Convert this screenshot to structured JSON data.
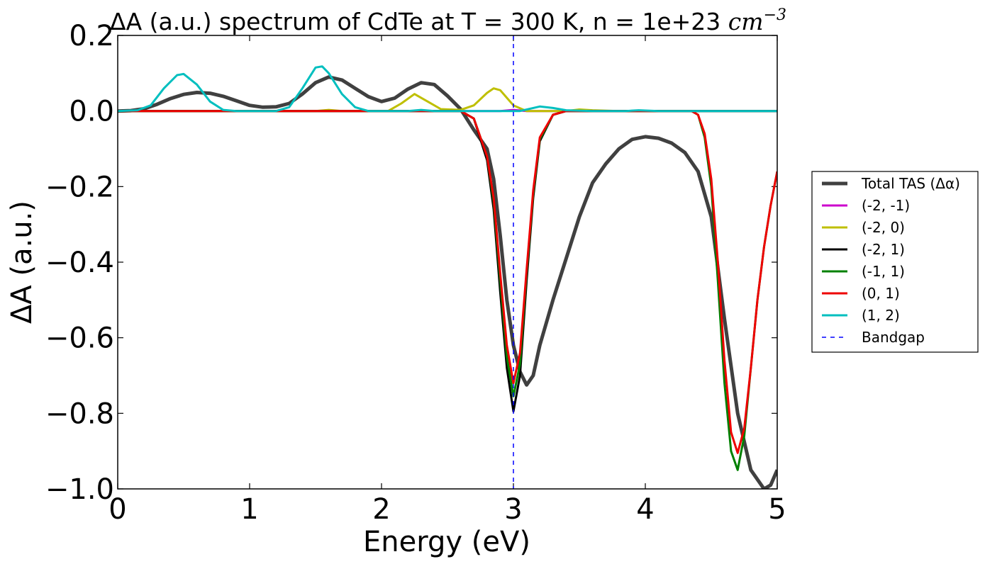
{
  "chart_data": {
    "type": "line",
    "title_main": "ΔA (a.u.) spectrum of CdTe at T = 300 K, n = 1e+23 ",
    "title_unit": "cm",
    "title_exp": "−3",
    "xlabel": "Energy (eV)",
    "ylabel": "ΔA (a.u.)",
    "xlim": [
      0,
      5
    ],
    "ylim": [
      -1.0,
      0.2
    ],
    "xticks": [
      0,
      1,
      2,
      3,
      4,
      5
    ],
    "xtick_labels": [
      "0",
      "1",
      "2",
      "3",
      "4",
      "5"
    ],
    "yticks": [
      -1.0,
      -0.8,
      -0.6,
      -0.4,
      -0.2,
      0.0,
      0.2
    ],
    "ytick_labels": [
      "−1.0",
      "−0.8",
      "−0.6",
      "−0.4",
      "−0.2",
      "0.0",
      "0.2"
    ],
    "grid": false,
    "legend_position": "outside-right",
    "bandgap_x": 3.0,
    "series": [
      {
        "name": "Total TAS (Δα)",
        "color": "#404040",
        "width": 5,
        "points": [
          [
            0,
            0
          ],
          [
            0.1,
            0.001
          ],
          [
            0.2,
            0.006
          ],
          [
            0.3,
            0.018
          ],
          [
            0.4,
            0.033
          ],
          [
            0.5,
            0.044
          ],
          [
            0.6,
            0.049
          ],
          [
            0.7,
            0.047
          ],
          [
            0.8,
            0.039
          ],
          [
            0.9,
            0.027
          ],
          [
            1.0,
            0.015
          ],
          [
            1.1,
            0.01
          ],
          [
            1.2,
            0.011
          ],
          [
            1.3,
            0.02
          ],
          [
            1.4,
            0.045
          ],
          [
            1.5,
            0.075
          ],
          [
            1.6,
            0.09
          ],
          [
            1.7,
            0.082
          ],
          [
            1.8,
            0.06
          ],
          [
            1.9,
            0.038
          ],
          [
            2.0,
            0.025
          ],
          [
            2.1,
            0.034
          ],
          [
            2.2,
            0.058
          ],
          [
            2.3,
            0.075
          ],
          [
            2.4,
            0.07
          ],
          [
            2.5,
            0.04
          ],
          [
            2.6,
            0.005
          ],
          [
            2.7,
            -0.05
          ],
          [
            2.8,
            -0.1
          ],
          [
            2.85,
            -0.18
          ],
          [
            2.9,
            -0.33
          ],
          [
            2.95,
            -0.5
          ],
          [
            3.0,
            -0.62
          ],
          [
            3.05,
            -0.69
          ],
          [
            3.1,
            -0.725
          ],
          [
            3.15,
            -0.7
          ],
          [
            3.2,
            -0.62
          ],
          [
            3.3,
            -0.5
          ],
          [
            3.4,
            -0.39
          ],
          [
            3.5,
            -0.28
          ],
          [
            3.6,
            -0.19
          ],
          [
            3.7,
            -0.14
          ],
          [
            3.8,
            -0.1
          ],
          [
            3.9,
            -0.075
          ],
          [
            4.0,
            -0.068
          ],
          [
            4.1,
            -0.072
          ],
          [
            4.2,
            -0.085
          ],
          [
            4.3,
            -0.11
          ],
          [
            4.4,
            -0.16
          ],
          [
            4.5,
            -0.28
          ],
          [
            4.6,
            -0.55
          ],
          [
            4.7,
            -0.8
          ],
          [
            4.8,
            -0.95
          ],
          [
            4.9,
            -1.0
          ],
          [
            4.95,
            -0.99
          ],
          [
            5.0,
            -0.95
          ]
        ]
      },
      {
        "name": "(-2, -1)",
        "color": "#cc00cc",
        "width": 3,
        "points": [
          [
            0,
            0
          ],
          [
            2.9,
            0
          ],
          [
            3.0,
            0.003
          ],
          [
            3.1,
            0
          ],
          [
            5.0,
            0
          ]
        ]
      },
      {
        "name": "(-2, 0)",
        "color": "#bfbf00",
        "width": 3,
        "points": [
          [
            0,
            0
          ],
          [
            1.5,
            0
          ],
          [
            1.6,
            0.003
          ],
          [
            1.7,
            0
          ],
          [
            2.05,
            0
          ],
          [
            2.15,
            0.02
          ],
          [
            2.25,
            0.045
          ],
          [
            2.35,
            0.025
          ],
          [
            2.45,
            0.005
          ],
          [
            2.6,
            0.003
          ],
          [
            2.7,
            0.015
          ],
          [
            2.8,
            0.048
          ],
          [
            2.85,
            0.06
          ],
          [
            2.9,
            0.055
          ],
          [
            2.95,
            0.035
          ],
          [
            3.0,
            0.015
          ],
          [
            3.1,
            0
          ],
          [
            3.4,
            0
          ],
          [
            3.5,
            0.004
          ],
          [
            3.6,
            0.002
          ],
          [
            3.8,
            0
          ],
          [
            5.0,
            0
          ]
        ]
      },
      {
        "name": "(-2, 1)",
        "color": "#000000",
        "width": 3,
        "points": [
          [
            0,
            0
          ],
          [
            2.6,
            0
          ],
          [
            2.7,
            -0.02
          ],
          [
            2.8,
            -0.13
          ],
          [
            2.85,
            -0.26
          ],
          [
            2.9,
            -0.48
          ],
          [
            2.95,
            -0.68
          ],
          [
            3.0,
            -0.795
          ],
          [
            3.05,
            -0.7
          ],
          [
            3.1,
            -0.45
          ],
          [
            3.15,
            -0.23
          ],
          [
            3.2,
            -0.08
          ],
          [
            3.3,
            -0.01
          ],
          [
            3.4,
            0
          ],
          [
            5.0,
            0
          ]
        ]
      },
      {
        "name": "(-1, 1)",
        "color": "#008000",
        "width": 3,
        "points": [
          [
            0,
            0
          ],
          [
            2.6,
            0
          ],
          [
            2.7,
            -0.02
          ],
          [
            2.8,
            -0.12
          ],
          [
            2.85,
            -0.24
          ],
          [
            2.9,
            -0.45
          ],
          [
            2.95,
            -0.65
          ],
          [
            3.0,
            -0.755
          ],
          [
            3.05,
            -0.67
          ],
          [
            3.1,
            -0.43
          ],
          [
            3.15,
            -0.22
          ],
          [
            3.2,
            -0.075
          ],
          [
            3.3,
            -0.01
          ],
          [
            3.4,
            0
          ],
          [
            4.35,
            0
          ],
          [
            4.4,
            -0.01
          ],
          [
            4.45,
            -0.07
          ],
          [
            4.5,
            -0.2
          ],
          [
            4.55,
            -0.45
          ],
          [
            4.6,
            -0.72
          ],
          [
            4.65,
            -0.9
          ],
          [
            4.7,
            -0.95
          ],
          [
            4.75,
            -0.86
          ],
          [
            4.8,
            -0.68
          ],
          [
            4.85,
            -0.5
          ],
          [
            4.9,
            -0.36
          ],
          [
            4.95,
            -0.25
          ],
          [
            5.0,
            -0.16
          ]
        ]
      },
      {
        "name": "(0, 1)",
        "color": "#ee0000",
        "width": 3,
        "points": [
          [
            0,
            0
          ],
          [
            2.6,
            0
          ],
          [
            2.7,
            -0.02
          ],
          [
            2.8,
            -0.12
          ],
          [
            2.85,
            -0.23
          ],
          [
            2.9,
            -0.43
          ],
          [
            2.95,
            -0.62
          ],
          [
            3.0,
            -0.72
          ],
          [
            3.05,
            -0.64
          ],
          [
            3.1,
            -0.42
          ],
          [
            3.15,
            -0.21
          ],
          [
            3.2,
            -0.07
          ],
          [
            3.3,
            -0.01
          ],
          [
            3.4,
            0
          ],
          [
            4.35,
            0
          ],
          [
            4.4,
            -0.01
          ],
          [
            4.45,
            -0.06
          ],
          [
            4.5,
            -0.18
          ],
          [
            4.55,
            -0.4
          ],
          [
            4.6,
            -0.66
          ],
          [
            4.65,
            -0.85
          ],
          [
            4.7,
            -0.905
          ],
          [
            4.75,
            -0.84
          ],
          [
            4.8,
            -0.68
          ],
          [
            4.85,
            -0.5
          ],
          [
            4.9,
            -0.36
          ],
          [
            4.95,
            -0.25
          ],
          [
            5.0,
            -0.16
          ]
        ]
      },
      {
        "name": "(1, 2)",
        "color": "#00bfbf",
        "width": 3,
        "points": [
          [
            0,
            0
          ],
          [
            0.15,
            0.002
          ],
          [
            0.25,
            0.015
          ],
          [
            0.35,
            0.06
          ],
          [
            0.45,
            0.095
          ],
          [
            0.5,
            0.098
          ],
          [
            0.6,
            0.07
          ],
          [
            0.7,
            0.025
          ],
          [
            0.8,
            0.003
          ],
          [
            0.9,
            0
          ],
          [
            1.2,
            0
          ],
          [
            1.3,
            0.01
          ],
          [
            1.4,
            0.06
          ],
          [
            1.5,
            0.115
          ],
          [
            1.55,
            0.118
          ],
          [
            1.6,
            0.1
          ],
          [
            1.7,
            0.045
          ],
          [
            1.8,
            0.01
          ],
          [
            1.9,
            0
          ],
          [
            2.2,
            0
          ],
          [
            2.3,
            0.003
          ],
          [
            2.4,
            0
          ],
          [
            3.05,
            0
          ],
          [
            3.15,
            0.008
          ],
          [
            3.2,
            0.012
          ],
          [
            3.3,
            0.008
          ],
          [
            3.4,
            0.002
          ],
          [
            3.6,
            0
          ],
          [
            3.85,
            0
          ],
          [
            3.95,
            0.002
          ],
          [
            4.1,
            0
          ],
          [
            5.0,
            0
          ]
        ]
      },
      {
        "name": "Bandgap",
        "color": "#0000ff",
        "width": 1.5,
        "dashed": true,
        "points": []
      }
    ]
  }
}
